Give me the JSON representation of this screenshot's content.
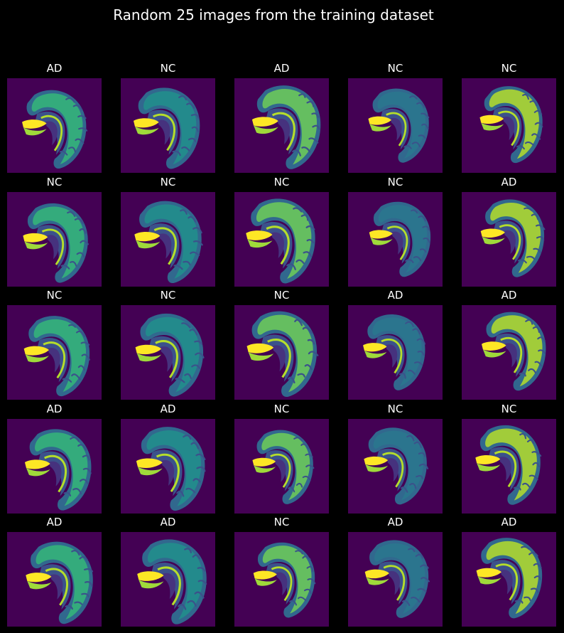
{
  "title": "Random 25 images from the training dataset",
  "colors": {
    "background": "#000000",
    "scan_background": "#440154",
    "text": "#ffffff"
  },
  "images": [
    {
      "label": "AD"
    },
    {
      "label": "NC"
    },
    {
      "label": "AD"
    },
    {
      "label": "NC"
    },
    {
      "label": "NC"
    },
    {
      "label": "NC"
    },
    {
      "label": "NC"
    },
    {
      "label": "NC"
    },
    {
      "label": "NC"
    },
    {
      "label": "AD"
    },
    {
      "label": "NC"
    },
    {
      "label": "NC"
    },
    {
      "label": "NC"
    },
    {
      "label": "AD"
    },
    {
      "label": "AD"
    },
    {
      "label": "AD"
    },
    {
      "label": "AD"
    },
    {
      "label": "NC"
    },
    {
      "label": "NC"
    },
    {
      "label": "NC"
    },
    {
      "label": "AD"
    },
    {
      "label": "AD"
    },
    {
      "label": "NC"
    },
    {
      "label": "AD"
    },
    {
      "label": "AD"
    }
  ]
}
